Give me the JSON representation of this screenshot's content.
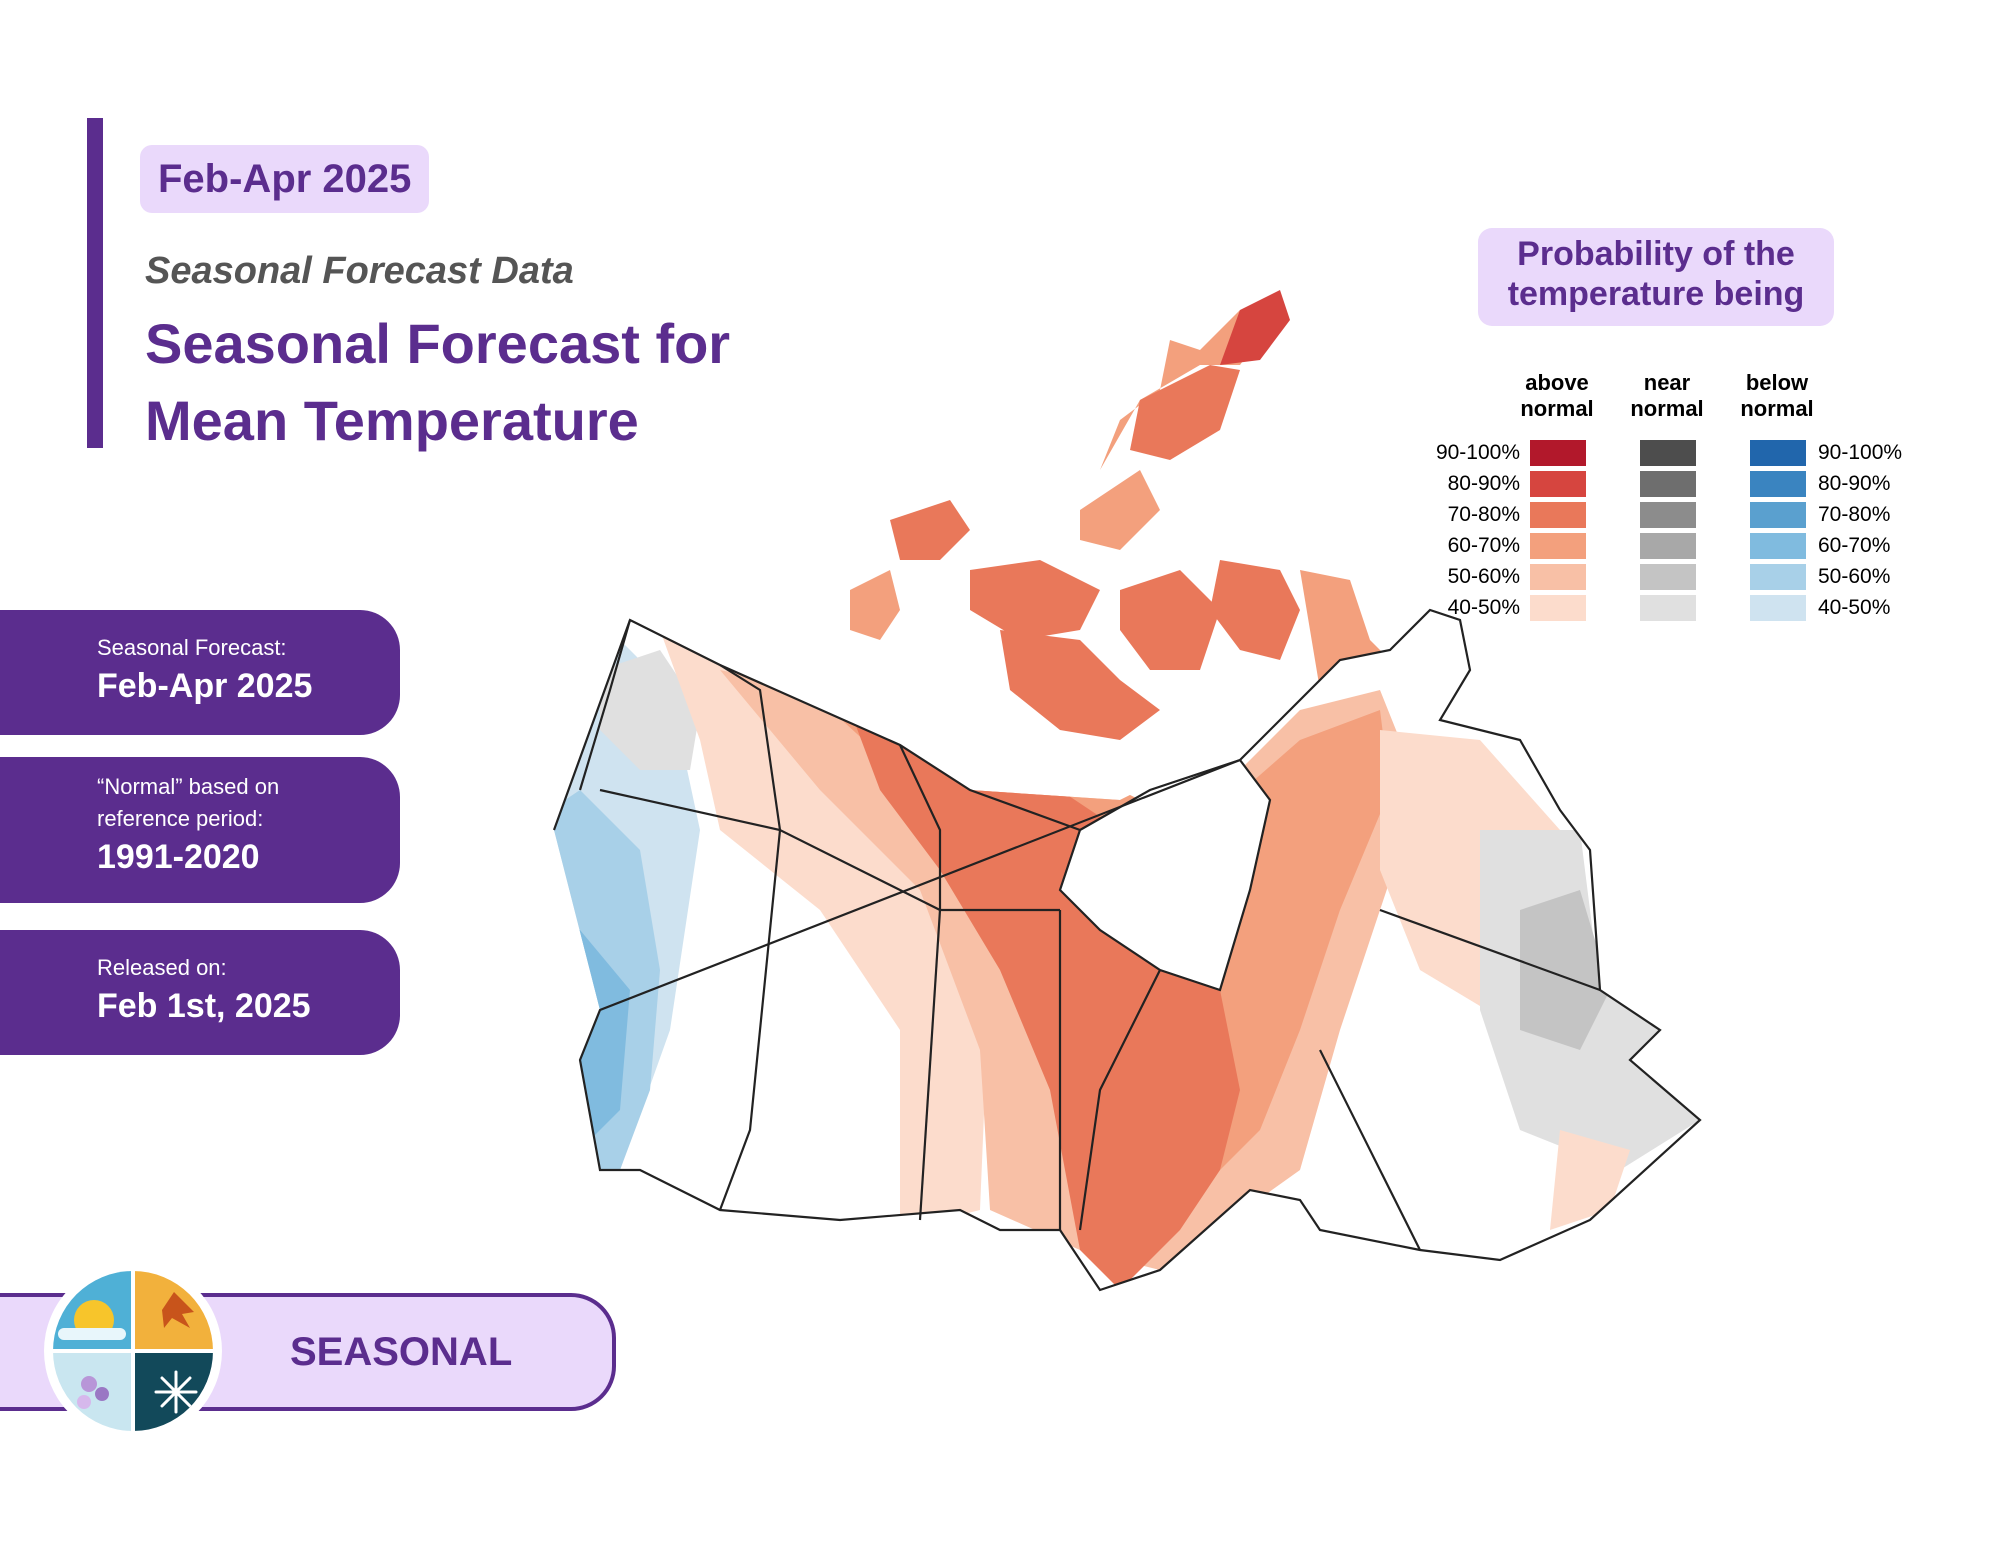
{
  "header": {
    "period_chip": "Feb-Apr 2025",
    "subtitle": "Seasonal Forecast Data",
    "title_line1": "Seasonal Forecast for",
    "title_line2": "Mean Temperature"
  },
  "info_cards": [
    {
      "label": "Seasonal Forecast:",
      "value": "Feb-Apr 2025"
    },
    {
      "label": "“Normal” based on\nreference period:",
      "value": "1991-2020"
    },
    {
      "label": "Released on:",
      "value": "Feb 1st, 2025"
    }
  ],
  "footer": {
    "label": "SEASONAL"
  },
  "legend": {
    "title_line1": "Probability of the",
    "title_line2": "temperature being",
    "columns": [
      {
        "heading": "above\nnormal",
        "colors": [
          "#b2182b",
          "#d6453f",
          "#e9785a",
          "#f3a07d",
          "#f8c0a6",
          "#fcdccc"
        ]
      },
      {
        "heading": "near\nnormal",
        "colors": [
          "#4d4d4d",
          "#6e6e6e",
          "#8c8c8c",
          "#a8a8a8",
          "#c4c4c4",
          "#e0e0e0"
        ]
      },
      {
        "heading": "below\nnormal",
        "colors": [
          "#2166ac",
          "#3a84c0",
          "#5aa0cf",
          "#80bbdf",
          "#a8d0e8",
          "#cfe3f0"
        ]
      }
    ],
    "ranges": [
      "90-100%",
      "80-90%",
      "70-80%",
      "60-70%",
      "50-60%",
      "40-50%"
    ]
  },
  "colors": {
    "brand_purple": "#5b2d8e",
    "chip_bg": "#ead9fb"
  }
}
